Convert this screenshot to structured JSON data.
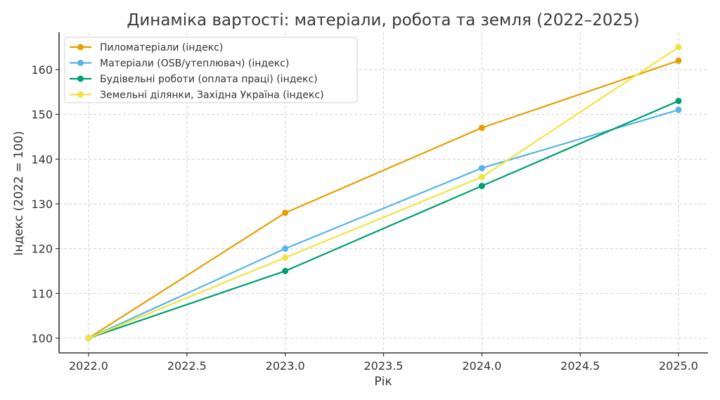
{
  "chart_data": {
    "type": "line",
    "title": "Динаміка вартості: матеріали, робота та земля (2022–2025)",
    "xlabel": "Рік",
    "ylabel": "Індекс (2022 = 100)",
    "x": [
      2022,
      2023,
      2024,
      2025
    ],
    "xticks": [
      "2022.0",
      "2022.5",
      "2023.0",
      "2023.5",
      "2024.0",
      "2024.5",
      "2025.0"
    ],
    "xtick_values": [
      2022.0,
      2022.5,
      2023.0,
      2023.5,
      2024.0,
      2024.5,
      2025.0
    ],
    "yticks": [
      "100",
      "110",
      "120",
      "130",
      "140",
      "150",
      "160"
    ],
    "ytick_values": [
      100,
      110,
      120,
      130,
      140,
      150,
      160
    ],
    "xlim": [
      2021.85,
      2025.15
    ],
    "ylim": [
      96.8,
      168.5
    ],
    "grid": true,
    "legend_position": "upper left",
    "series": [
      {
        "name": "Пиломатеріали (індекс)",
        "color": "#E69F00",
        "values": [
          100,
          128,
          147,
          162
        ]
      },
      {
        "name": "Матеріали (OSB/утеплювач) (індекс)",
        "color": "#56B4E9",
        "values": [
          100,
          120,
          138,
          151
        ]
      },
      {
        "name": "Будівельні роботи (оплата праці) (індекс)",
        "color": "#009E73",
        "values": [
          100,
          115,
          134,
          153
        ]
      },
      {
        "name": "Земельні ділянки, Західна Україна (індекс)",
        "color": "#F0E442",
        "values": [
          100,
          118,
          136,
          165
        ]
      }
    ]
  }
}
